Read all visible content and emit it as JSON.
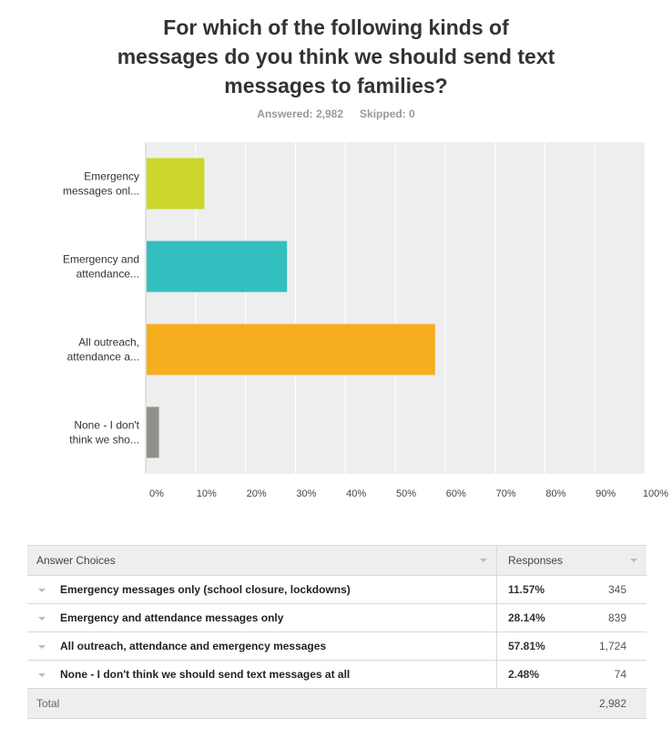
{
  "title_lines": [
    "For which of the following kinds of",
    "messages do you think we should send text",
    "messages to families?"
  ],
  "answered": "Answered: 2,982",
  "skipped": "Skipped: 0",
  "chart_data": {
    "type": "bar",
    "orientation": "horizontal",
    "categories": [
      "Emergency messages onl...",
      "Emergency and attendance...",
      "All outreach, attendance a...",
      "None - I don't think we sho..."
    ],
    "category_lines": [
      [
        "Emergency",
        "messages onl..."
      ],
      [
        "Emergency and",
        "attendance..."
      ],
      [
        "All outreach,",
        "attendance a..."
      ],
      [
        "None - I don't",
        "think we sho..."
      ]
    ],
    "values": [
      11.57,
      28.14,
      57.81,
      2.48
    ],
    "colors": [
      "#cdd62b",
      "#33bfbf",
      "#f6ae1f",
      "#8f918a"
    ],
    "xlim": [
      0,
      100
    ],
    "xticks": [
      "0%",
      "10%",
      "20%",
      "30%",
      "40%",
      "50%",
      "60%",
      "70%",
      "80%",
      "90%",
      "100%"
    ],
    "grid": true,
    "background": "#eeeeee"
  },
  "table": {
    "headers": [
      "Answer Choices",
      "Responses"
    ],
    "rows": [
      {
        "choice": "Emergency messages only (school closure, lockdowns)",
        "pct": "11.57%",
        "count": "345"
      },
      {
        "choice": "Emergency and attendance messages only",
        "pct": "28.14%",
        "count": "839"
      },
      {
        "choice": "All outreach, attendance and emergency messages",
        "pct": "57.81%",
        "count": "1,724"
      },
      {
        "choice": "None - I don't think we should send text messages at all",
        "pct": "2.48%",
        "count": "74"
      }
    ],
    "total_label": "Total",
    "total_value": "2,982"
  }
}
